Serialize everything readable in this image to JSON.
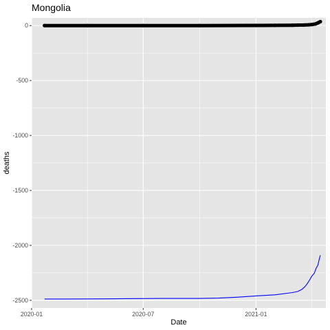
{
  "chart_data": {
    "type": "line",
    "title": "Mongolia",
    "xlabel": "Date",
    "ylabel": "deaths",
    "xlim": [
      "2020-01-01",
      "2021-04-25"
    ],
    "ylim": [
      -2570,
      70
    ],
    "x_ticks": [
      "2020-01",
      "2020-07",
      "2021-01"
    ],
    "y_ticks": [
      0,
      -500,
      -1000,
      -1500,
      -2000,
      -2500
    ],
    "y_tick_labels": [
      "0",
      "-500",
      "-1000",
      "-1500",
      "-2000",
      "-2500"
    ],
    "grid": true,
    "legend": "none",
    "panel_background": "#e5e5e5",
    "grid_color": "#ffffff",
    "series": [
      {
        "style": "thick points",
        "color": "#000000",
        "x": [
          "2020-01-22",
          "2020-04-01",
          "2020-07-01",
          "2020-10-01",
          "2021-01-01",
          "2021-02-01",
          "2021-03-01",
          "2021-03-10",
          "2021-03-20",
          "2021-03-28",
          "2021-04-03",
          "2021-04-08",
          "2021-04-12",
          "2021-04-16"
        ],
        "values": [
          0,
          0,
          0,
          0,
          1,
          2,
          3,
          4,
          5,
          7,
          10,
          15,
          24,
          36
        ]
      },
      {
        "style": "line",
        "color": "#0000ff",
        "x": [
          "2020-01-22",
          "2020-03-01",
          "2020-05-01",
          "2020-06-01",
          "2020-08-01",
          "2020-10-01",
          "2020-11-01",
          "2020-12-01",
          "2021-01-01",
          "2021-02-01",
          "2021-03-01",
          "2021-03-10",
          "2021-03-17",
          "2021-03-22",
          "2021-03-26",
          "2021-03-30",
          "2021-04-02",
          "2021-04-06",
          "2021-04-09",
          "2021-04-12",
          "2021-04-14",
          "2021-04-16"
        ],
        "values": [
          -2488,
          -2488,
          -2487,
          -2485,
          -2483,
          -2483,
          -2480,
          -2472,
          -2460,
          -2450,
          -2430,
          -2420,
          -2400,
          -2375,
          -2345,
          -2310,
          -2280,
          -2255,
          -2210,
          -2180,
          -2130,
          -2090
        ]
      }
    ]
  }
}
